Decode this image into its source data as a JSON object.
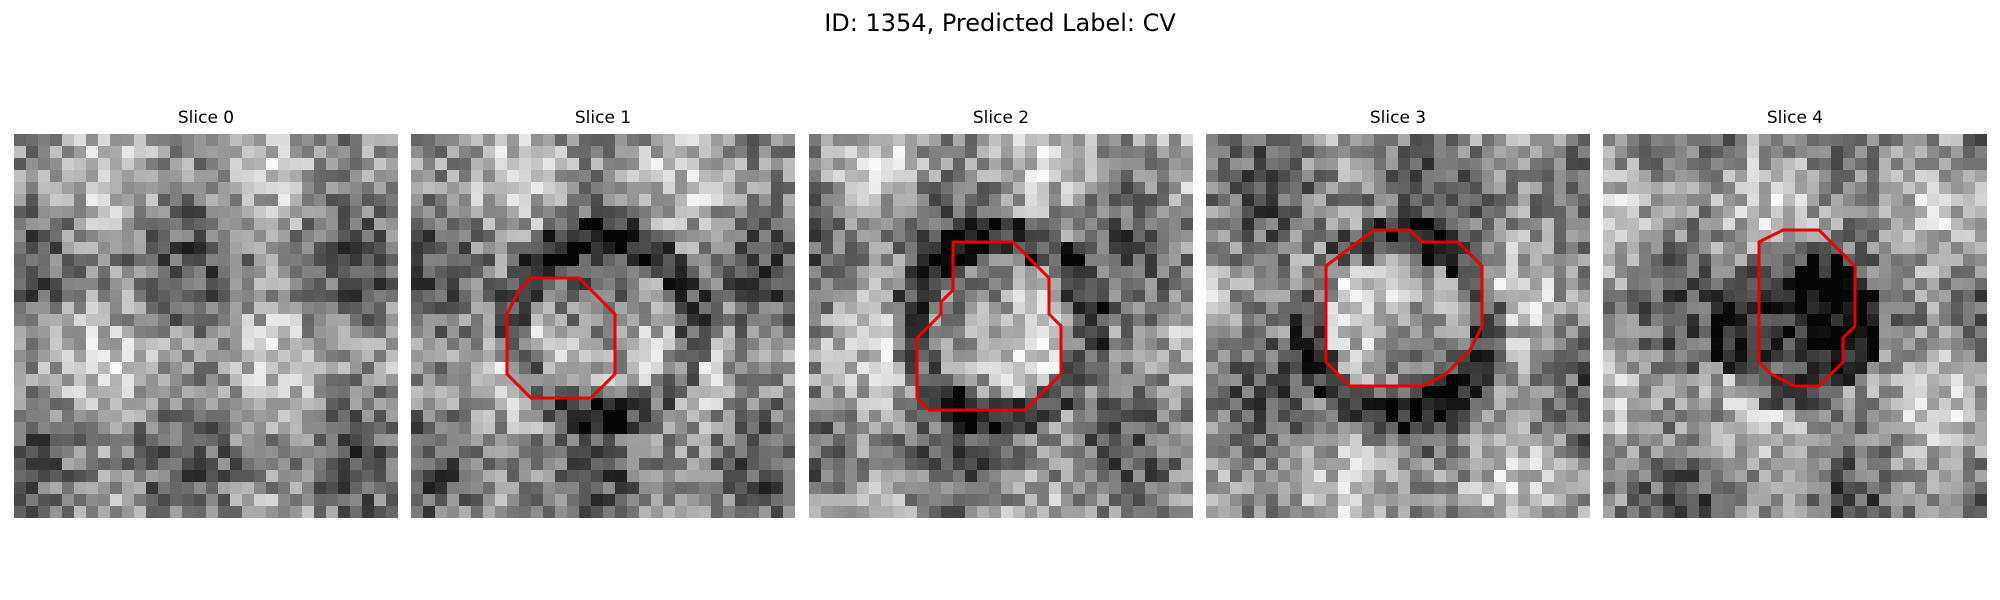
{
  "figure": {
    "title": "ID: 1354, Predicted Label: CV"
  },
  "panels": [
    {
      "title": "Slice 0",
      "seed": 11,
      "kind": "plain",
      "contour": []
    },
    {
      "title": "Slice 1",
      "seed": 23,
      "kind": "bright",
      "contour": [
        [
          10,
          12
        ],
        [
          14,
          12
        ],
        [
          17,
          15
        ],
        [
          17,
          20
        ],
        [
          15,
          22
        ],
        [
          10,
          22
        ],
        [
          8,
          20
        ],
        [
          8,
          15
        ],
        [
          9,
          13
        ]
      ]
    },
    {
      "title": "Slice 2",
      "seed": 37,
      "kind": "bright",
      "contour": [
        [
          12,
          9
        ],
        [
          17,
          9
        ],
        [
          20,
          12
        ],
        [
          20,
          15
        ],
        [
          21,
          16
        ],
        [
          21,
          20
        ],
        [
          18,
          23
        ],
        [
          10,
          23
        ],
        [
          9,
          22
        ],
        [
          9,
          17
        ],
        [
          11,
          15
        ],
        [
          11,
          14
        ],
        [
          12,
          13
        ],
        [
          12,
          10
        ]
      ]
    },
    {
      "title": "Slice 3",
      "seed": 53,
      "kind": "bright",
      "contour": [
        [
          14,
          8
        ],
        [
          17,
          8
        ],
        [
          18,
          9
        ],
        [
          21,
          9
        ],
        [
          23,
          11
        ],
        [
          23,
          16
        ],
        [
          22,
          18
        ],
        [
          20,
          20
        ],
        [
          18,
          21
        ],
        [
          12,
          21
        ],
        [
          10,
          19
        ],
        [
          10,
          11
        ]
      ]
    },
    {
      "title": "Slice 4",
      "seed": 71,
      "kind": "dark",
      "contour": [
        [
          15,
          8
        ],
        [
          18,
          8
        ],
        [
          21,
          11
        ],
        [
          21,
          16
        ],
        [
          20,
          17
        ],
        [
          20,
          19
        ],
        [
          18,
          21
        ],
        [
          16,
          21
        ],
        [
          14,
          20
        ],
        [
          13,
          19
        ],
        [
          13,
          9
        ]
      ]
    }
  ],
  "colors": {
    "contour": "#e60000",
    "background": "#ffffff"
  },
  "grid_size": 32
}
